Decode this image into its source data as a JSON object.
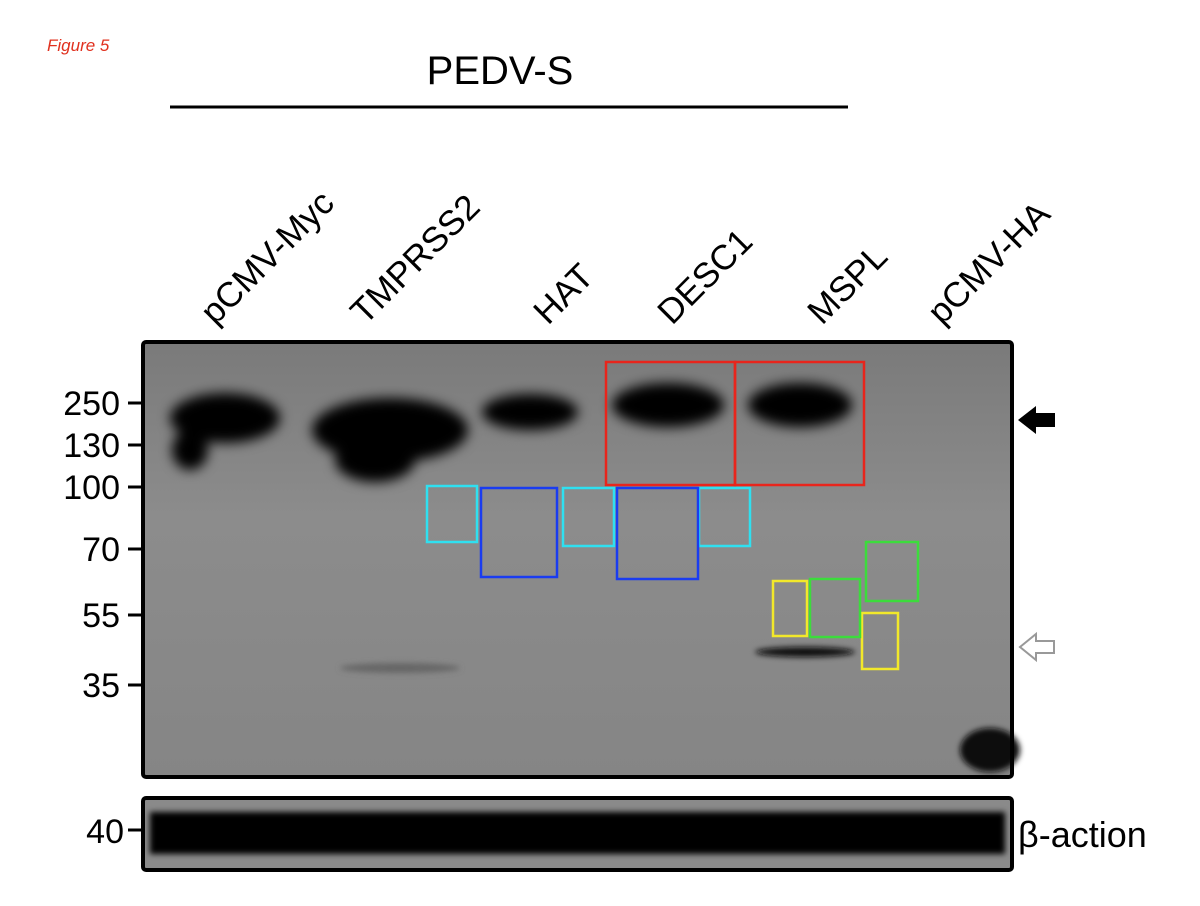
{
  "figure_label": "Figure 5",
  "group_label": "PEDV-S",
  "lanes": [
    "pCMV-Myc",
    "TMPRSS2",
    "HAT",
    "DESC1",
    "MSPL",
    "pCMV-HA"
  ],
  "markers": [
    "250",
    "130",
    "100",
    "70",
    "55",
    "35"
  ],
  "loading_control": {
    "marker": "40",
    "label": "β-action"
  }
}
